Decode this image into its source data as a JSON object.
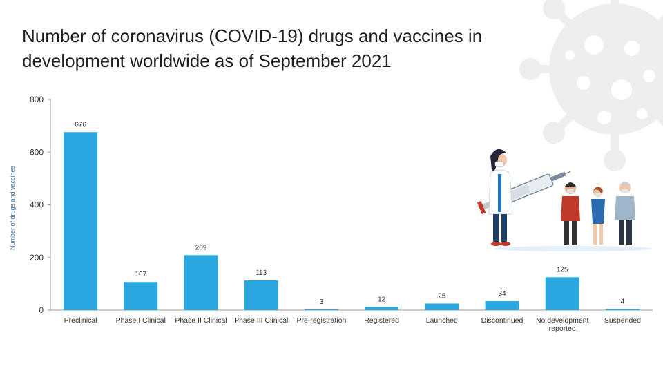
{
  "title": "Number of coronavirus (COVID-19) drugs and vaccines in development worldwide as of September 2021",
  "chart_data": {
    "type": "bar",
    "title": "Number of coronavirus (COVID-19) drugs and vaccines in development worldwide as of September 2021",
    "ylabel": "Number of drugs and vaccines",
    "xlabel": "",
    "ylim": [
      0,
      800
    ],
    "yticks": [
      0,
      200,
      400,
      600,
      800
    ],
    "grid": false,
    "bar_color": "#29a8e0",
    "categories": [
      "Preclinical",
      "Phase I Clinical",
      "Phase II Clinical",
      "Phase III Clinical",
      "Pre-registration",
      "Registered",
      "Launched",
      "Discontinued",
      "No development reported",
      "Suspended"
    ],
    "category_lines": [
      [
        "Preclinical"
      ],
      [
        "Phase I Clinical"
      ],
      [
        "Phase II Clinical"
      ],
      [
        "Phase III Clinical"
      ],
      [
        "Pre-registration"
      ],
      [
        "Registered"
      ],
      [
        "Launched"
      ],
      [
        "Discontinued"
      ],
      [
        "No development",
        "reported"
      ],
      [
        "Suspended"
      ]
    ],
    "values": [
      676,
      107,
      209,
      113,
      3,
      12,
      25,
      34,
      125,
      4
    ]
  },
  "decorations": {
    "background_icon": "coronavirus-icon",
    "illustration": "doctor-with-syringe-and-patients-illustration",
    "virus_color": "#ececec"
  }
}
